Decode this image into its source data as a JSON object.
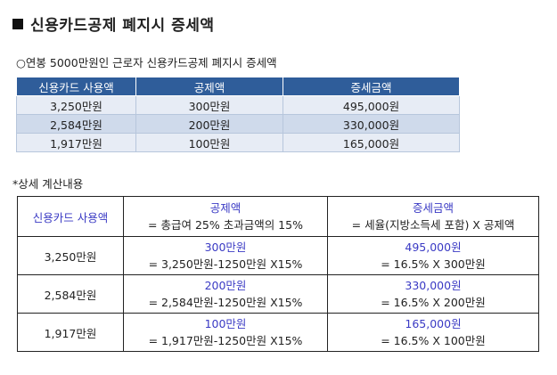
{
  "title": "신용카드공제 폐지시 증세액",
  "subtitle": "○연봉 5000만원인 근로자 신용카드공제 폐지시 증세액",
  "table1": {
    "headers": [
      "신용카드 사용액",
      "공제액",
      "증세금액"
    ],
    "rows": [
      [
        "3,250만원",
        "300만원",
        "495,000원"
      ],
      [
        "2,584만원",
        "200만원",
        "330,000원"
      ],
      [
        "1,917만원",
        "100만원",
        "165,000원"
      ]
    ]
  },
  "detail_label": "*상세 계산내용",
  "table2": {
    "header": {
      "col1": "신용카드 사용액",
      "col2_title": "공제액",
      "col2_formula": "= 총급여 25% 초과금액의 15%",
      "col3_title": "증세금액",
      "col3_formula": "= 세율(지방소득세 포함) X 공제액"
    },
    "rows": [
      {
        "usage": "3,250만원",
        "deduction": "300만원",
        "deduction_calc": "= 3,250만원-1250만원 X15%",
        "tax": "495,000원",
        "tax_calc": "= 16.5% X 300만원"
      },
      {
        "usage": "2,584만원",
        "deduction": "200만원",
        "deduction_calc": "= 2,584만원-1250만원 X15%",
        "tax": "330,000원",
        "tax_calc": "= 16.5% X 200만원"
      },
      {
        "usage": "1,917만원",
        "deduction": "100만원",
        "deduction_calc": "= 1,917만원-1250만원 X15%",
        "tax": "165,000원",
        "tax_calc": "= 16.5% X 100만원"
      }
    ]
  }
}
